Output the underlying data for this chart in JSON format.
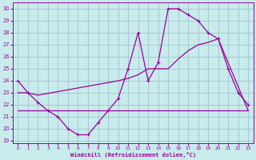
{
  "xlabel": "Windchill (Refroidissement éolien,°C)",
  "xlim": [
    -0.5,
    23.5
  ],
  "ylim": [
    18.8,
    30.5
  ],
  "xticks": [
    0,
    1,
    2,
    3,
    4,
    5,
    6,
    7,
    8,
    9,
    10,
    11,
    12,
    13,
    14,
    15,
    16,
    17,
    18,
    19,
    20,
    21,
    22,
    23
  ],
  "yticks": [
    19,
    20,
    21,
    22,
    23,
    24,
    25,
    26,
    27,
    28,
    29,
    30
  ],
  "bg_color": "#c8ecec",
  "grid_color": "#a0b8c8",
  "line_color": "#990099",
  "curve1_x": [
    0,
    1,
    2,
    3,
    4,
    5,
    6,
    7,
    8,
    9,
    10,
    11,
    12,
    13,
    14,
    15,
    16,
    17,
    18,
    19,
    20,
    21,
    22,
    23
  ],
  "curve1_y": [
    24,
    23,
    22.2,
    21.5,
    21.0,
    20.0,
    19.5,
    19.5,
    20.5,
    21.5,
    22.5,
    25.0,
    28.0,
    24.0,
    25.5,
    30.0,
    30.0,
    29.5,
    29.0,
    28.0,
    27.5,
    25.0,
    23.0,
    22.0
  ],
  "curve2_x": [
    0,
    23
  ],
  "curve2_y": [
    21.5,
    21.5
  ],
  "curve3_x": [
    0,
    1,
    2,
    10,
    11,
    12,
    13,
    14,
    15,
    16,
    17,
    18,
    19,
    20,
    23
  ],
  "curve3_y": [
    23.0,
    23.0,
    22.8,
    24.0,
    24.2,
    24.5,
    25.0,
    25.0,
    25.0,
    25.8,
    26.5,
    27.0,
    27.2,
    27.5,
    21.5
  ]
}
